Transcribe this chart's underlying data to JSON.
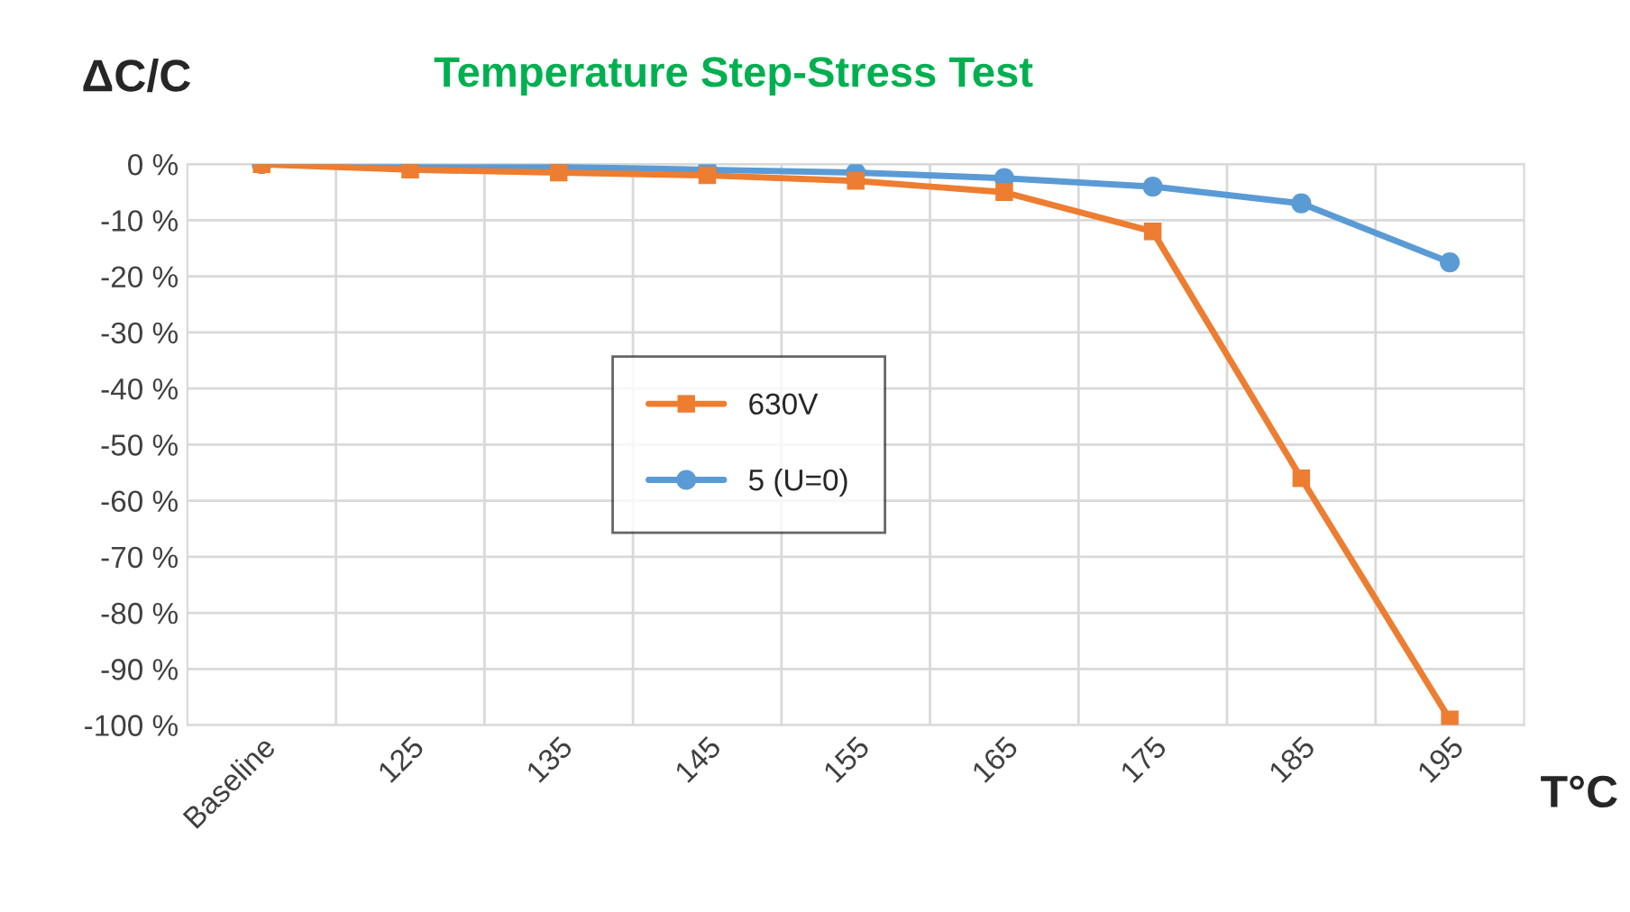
{
  "chart_data": {
    "type": "line",
    "title": "Temperature Step-Stress Test",
    "ylabel": "ΔC/C",
    "xlabel": "T°C",
    "categories": [
      "Baseline",
      "125",
      "135",
      "145",
      "155",
      "165",
      "175",
      "185",
      "195"
    ],
    "series": [
      {
        "name": "630V",
        "color": "#ed7d31",
        "marker": "square",
        "values": [
          0,
          -1,
          -1.5,
          -2,
          -3,
          -5,
          -12,
          -56,
          -99
        ]
      },
      {
        "name": "5 (U=0)",
        "color": "#5b9bd5",
        "marker": "circle",
        "values": [
          0,
          -0.5,
          -0.5,
          -1,
          -1.5,
          -2.5,
          -4,
          -7,
          -17.5
        ]
      }
    ],
    "ylim": [
      -100,
      0
    ],
    "yticks": [
      {
        "value": 0,
        "label": "0 %"
      },
      {
        "value": -10,
        "label": "-10 %"
      },
      {
        "value": -20,
        "label": "-20 %"
      },
      {
        "value": -30,
        "label": "-30 %"
      },
      {
        "value": -40,
        "label": "-40 %"
      },
      {
        "value": -50,
        "label": "-50 %"
      },
      {
        "value": -60,
        "label": "-60 %"
      },
      {
        "value": -70,
        "label": "-70 %"
      },
      {
        "value": -80,
        "label": "-80 %"
      },
      {
        "value": -90,
        "label": "-90 %"
      },
      {
        "value": -100,
        "label": "-100 %"
      }
    ],
    "grid": true,
    "legend": "center",
    "line_style": "solid"
  }
}
